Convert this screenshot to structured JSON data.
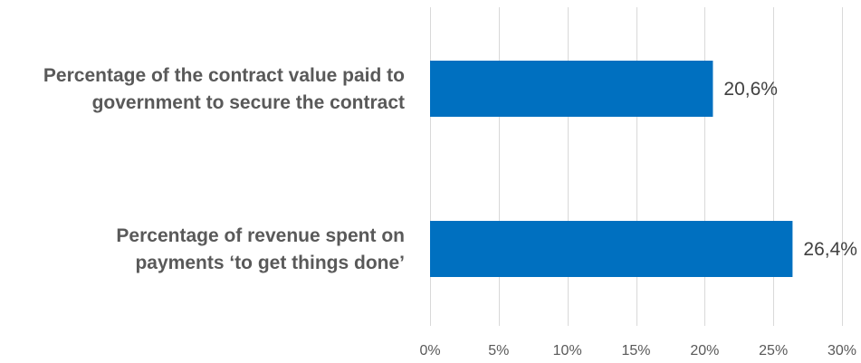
{
  "chart_data": {
    "type": "bar",
    "orientation": "horizontal",
    "categories": [
      [
        "Percentage of the contract value paid to",
        "government to secure the contract"
      ],
      [
        "Percentage of revenue spent on",
        "payments ‘to get things done’"
      ]
    ],
    "values": [
      20.6,
      26.4
    ],
    "data_labels": [
      "20,6%",
      "26,4%"
    ],
    "xlim": [
      0,
      30
    ],
    "xticks": [
      0,
      5,
      10,
      15,
      20,
      25,
      30
    ],
    "xtick_labels": [
      "0%",
      "5%",
      "10%",
      "15%",
      "20%",
      "25%",
      "30%"
    ],
    "grid": true,
    "legend": "none",
    "bar_color": "#0070C0",
    "title": "",
    "xlabel": "",
    "ylabel": ""
  }
}
